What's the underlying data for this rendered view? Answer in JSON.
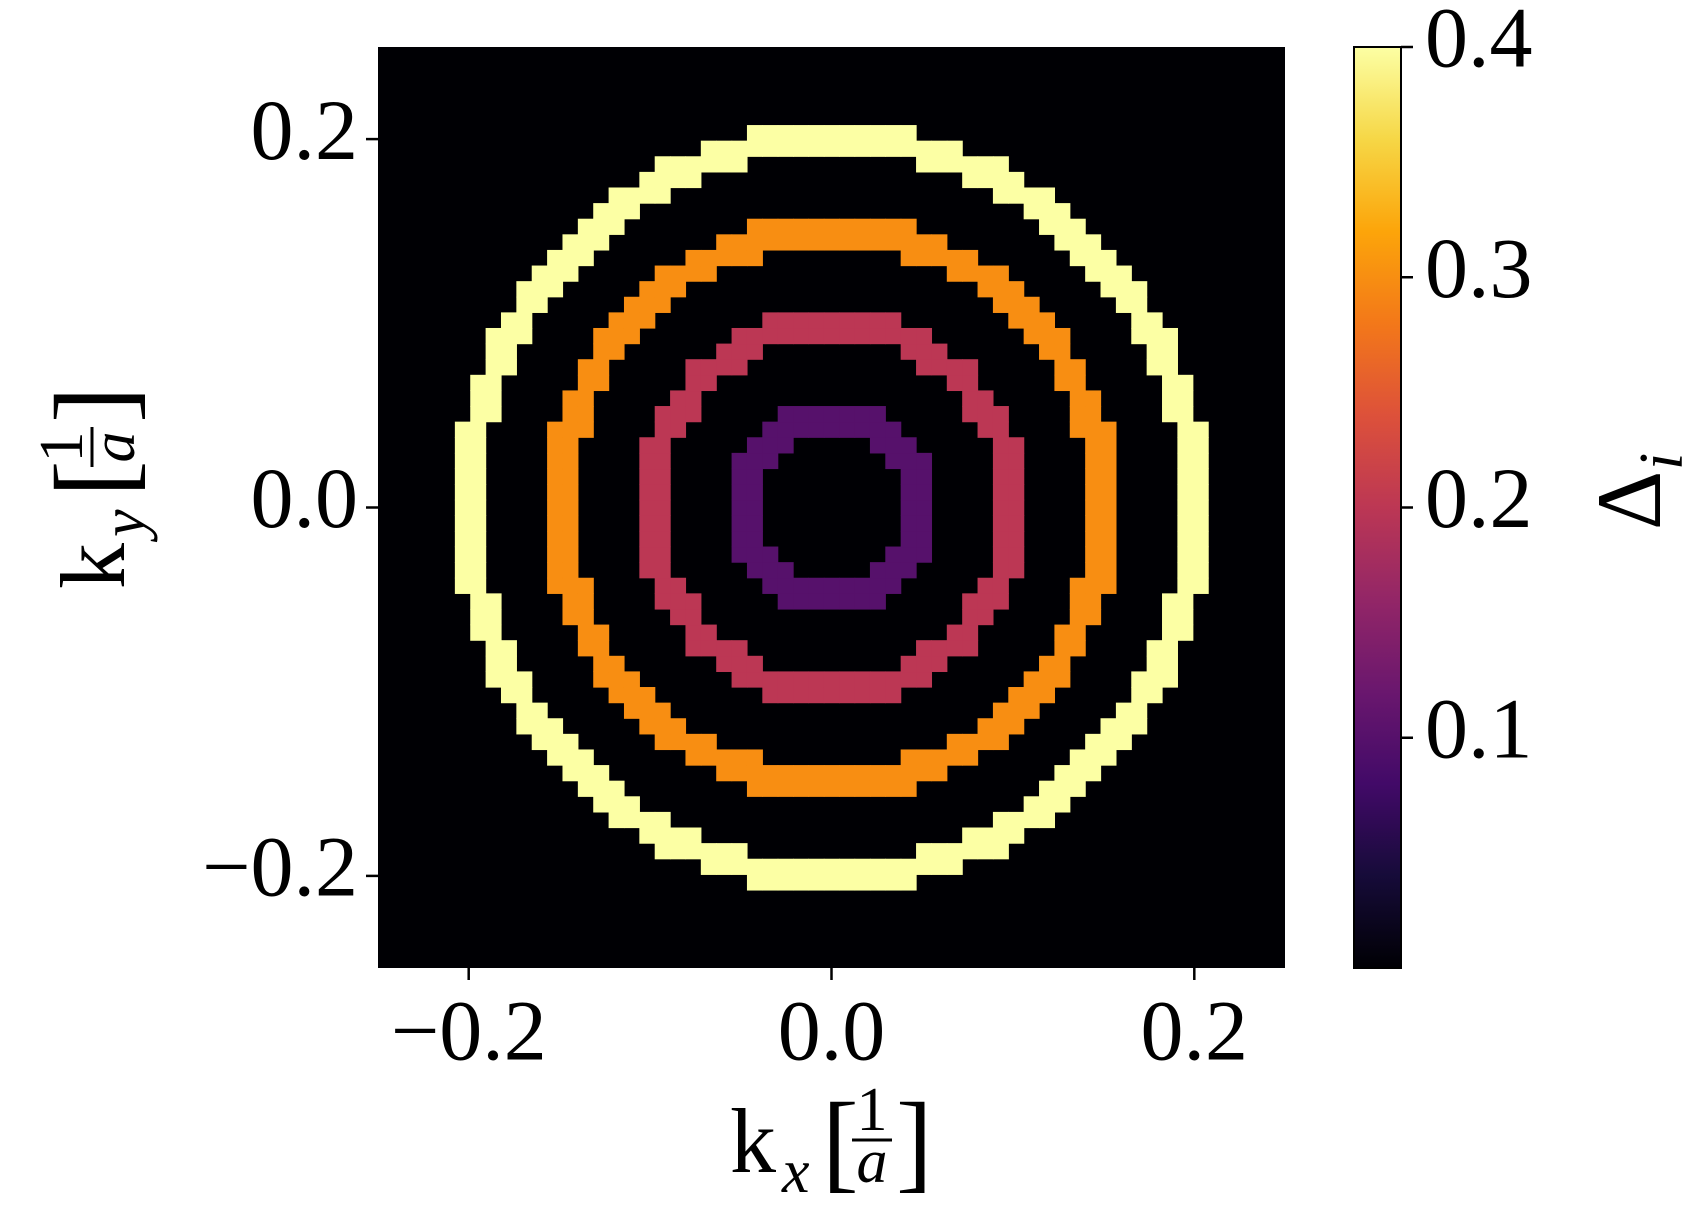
{
  "chart_data": {
    "type": "heatmap",
    "colormap": "inferno",
    "background_value": 0,
    "rings": [
      {
        "radius": 0.05,
        "value": 0.1
      },
      {
        "radius": 0.1,
        "value": 0.2
      },
      {
        "radius": 0.15,
        "value": 0.3
      },
      {
        "radius": 0.2,
        "value": 0.4
      }
    ],
    "xlim": [
      -0.25,
      0.25
    ],
    "ylim": [
      -0.25,
      0.25
    ],
    "xticks": [
      {
        "value": -0.2,
        "label": "−0.2"
      },
      {
        "value": 0,
        "label": "0.0"
      },
      0.2
    ],
    "yticks": [
      {
        "value": -0.2,
        "label": "−0.2"
      },
      {
        "value": 0,
        "label": "0.0"
      },
      0.2
    ],
    "xlabel": {
      "base": "k",
      "sub": "x",
      "num": "1",
      "den": "a"
    },
    "ylabel": {
      "base": "k",
      "sub": "y",
      "num": "1",
      "den": "a"
    },
    "colorbar": {
      "clim": [
        0,
        0.4
      ],
      "ticks": [
        0.1,
        0.2,
        0.3,
        0.4
      ],
      "label": {
        "base": "Δ",
        "sub": "i"
      }
    }
  }
}
